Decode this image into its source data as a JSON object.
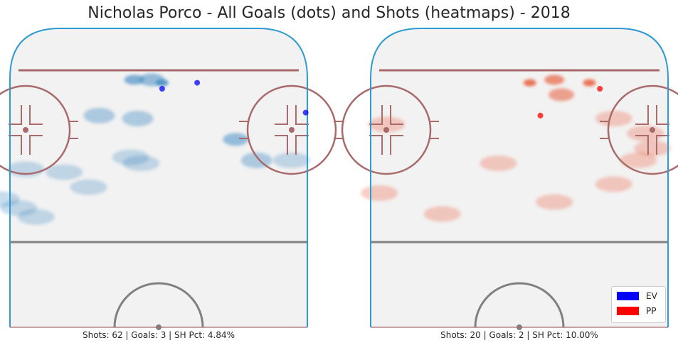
{
  "title": "Nicholas Porco - All Goals (dots) and Shots (heatmaps) - 2018",
  "colors": {
    "ice": "#f2f2f2",
    "boards": "#2f9bd0",
    "red_line": "#a86a6a",
    "gray_line": "#808080",
    "ev": "#0000ff",
    "pp": "#ff0000",
    "ev_heat": "#3a86c0",
    "pp_heat": "#e8502e"
  },
  "legend": {
    "placement": "lower-right",
    "entries": [
      {
        "label": "EV",
        "color": "#0000ff"
      },
      {
        "label": "PP",
        "color": "#ff0000"
      }
    ]
  },
  "panels": [
    {
      "strength": "EV",
      "caption": "Shots: 62 | Goals: 3 | SH Pct: 4.84%",
      "shots": 62,
      "goals": 3,
      "sh_pct": 4.84
    },
    {
      "strength": "PP",
      "caption": "Shots: 20 | Goals: 2 | SH Pct: 10.00%",
      "shots": 20,
      "goals": 2,
      "sh_pct": 10.0
    }
  ],
  "chart_data": [
    {
      "type": "heatmap",
      "strength": "EV",
      "goals": [
        {
          "x": 1,
          "y": 80
        },
        {
          "x": 11,
          "y": 82
        },
        {
          "x": 42,
          "y": 72
        }
      ],
      "heat_blobs": [
        {
          "x": 1,
          "y": 82,
          "level": 5
        },
        {
          "x": -7,
          "y": 83,
          "level": 4
        },
        {
          "x": -2,
          "y": 83,
          "level": 3
        },
        {
          "x": -17,
          "y": 71,
          "level": 2
        },
        {
          "x": -6,
          "y": 70,
          "level": 2
        },
        {
          "x": 22,
          "y": 63,
          "level": 3
        },
        {
          "x": 28,
          "y": 56,
          "level": 2
        },
        {
          "x": 38,
          "y": 56,
          "level": 1
        },
        {
          "x": -27,
          "y": 52,
          "level": 1
        },
        {
          "x": -38,
          "y": 53,
          "level": 1
        },
        {
          "x": -8,
          "y": 57,
          "level": 1
        },
        {
          "x": -5,
          "y": 55,
          "level": 1
        },
        {
          "x": -20,
          "y": 47,
          "level": 1
        },
        {
          "x": -45,
          "y": 43,
          "level": 1
        },
        {
          "x": -40,
          "y": 40,
          "level": 1
        },
        {
          "x": -35,
          "y": 37,
          "level": 1
        }
      ]
    },
    {
      "type": "heatmap",
      "strength": "PP",
      "goals": [
        {
          "x": 23,
          "y": 80
        },
        {
          "x": 6,
          "y": 71
        }
      ],
      "heat_blobs": [
        {
          "x": 3,
          "y": 82,
          "level": 5
        },
        {
          "x": 20,
          "y": 82,
          "level": 5
        },
        {
          "x": 10,
          "y": 83,
          "level": 4
        },
        {
          "x": 12,
          "y": 78,
          "level": 3
        },
        {
          "x": 27,
          "y": 70,
          "level": 1
        },
        {
          "x": 36,
          "y": 65,
          "level": 1
        },
        {
          "x": 38,
          "y": 60,
          "level": 1
        },
        {
          "x": 34,
          "y": 56,
          "level": 1
        },
        {
          "x": -38,
          "y": 68,
          "level": 1
        },
        {
          "x": -6,
          "y": 55,
          "level": 1
        },
        {
          "x": 10,
          "y": 42,
          "level": 1
        },
        {
          "x": 27,
          "y": 48,
          "level": 1
        },
        {
          "x": -40,
          "y": 45,
          "level": 1
        },
        {
          "x": -22,
          "y": 38,
          "level": 1
        }
      ]
    }
  ]
}
